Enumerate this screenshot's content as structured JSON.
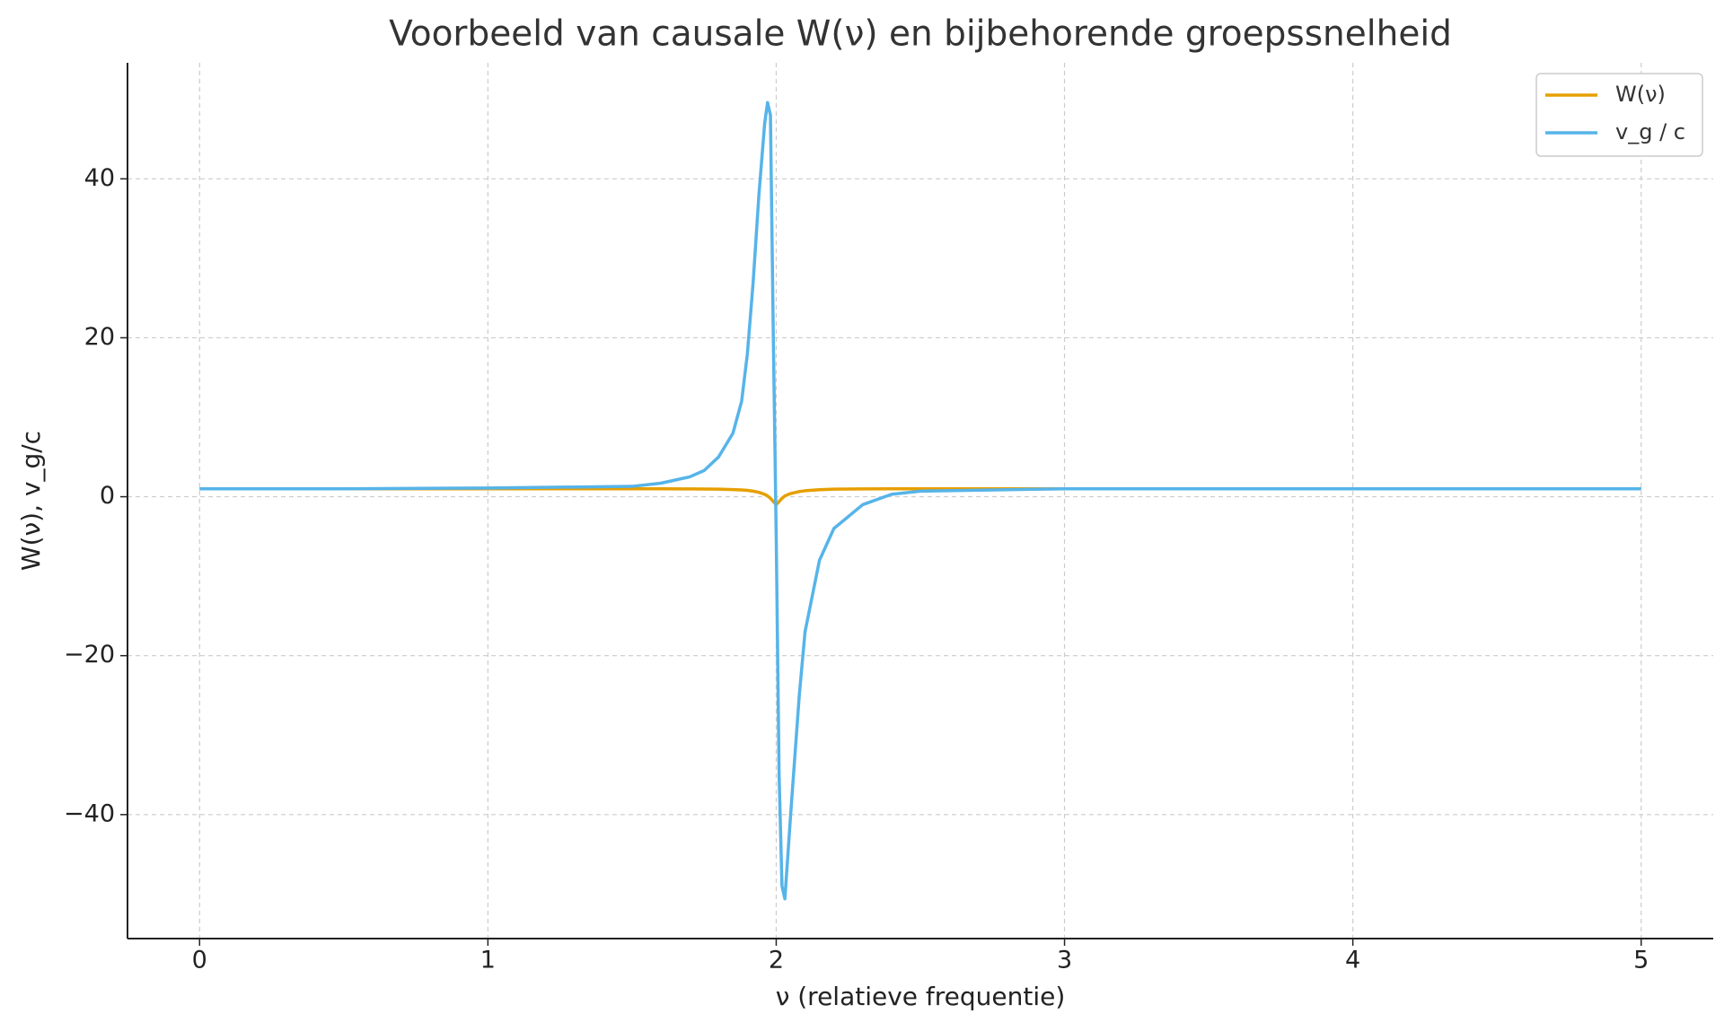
{
  "chart_data": {
    "type": "line",
    "title": "Voorbeeld van causale W(ν) en bijbehorende groepssnelheid",
    "x_label": "ν (relatieve frequentie)",
    "y_label": "W(ν), v_g/c",
    "x": [
      0,
      0.5,
      1,
      1.5,
      1.6,
      1.7,
      1.75,
      1.8,
      1.85,
      1.88,
      1.9,
      1.92,
      1.94,
      1.96,
      1.97,
      1.98,
      1.99,
      2.0,
      2.01,
      2.02,
      2.03,
      2.05,
      2.08,
      2.1,
      2.15,
      2.2,
      2.3,
      2.4,
      2.5,
      3,
      4,
      5
    ],
    "series": [
      {
        "name": "W(ν)",
        "color": "#E69F00",
        "values": [
          1,
          1,
          1,
          1,
          1,
          0.98,
          0.97,
          0.95,
          0.9,
          0.85,
          0.8,
          0.7,
          0.55,
          0.3,
          0.1,
          -0.2,
          -0.6,
          -1,
          -0.6,
          -0.2,
          0.1,
          0.4,
          0.65,
          0.75,
          0.88,
          0.95,
          0.98,
          1,
          1,
          1,
          1,
          1
        ]
      },
      {
        "name": "v_g / c",
        "color": "#56B4E9",
        "values": [
          1,
          1,
          1.1,
          1.3,
          1.7,
          2.5,
          3.3,
          5,
          8,
          12,
          18,
          27,
          38,
          47,
          49.6,
          48,
          20,
          -5,
          -35,
          -49,
          -50.6,
          -40,
          -25,
          -17,
          -8,
          -4,
          -1,
          0.3,
          0.7,
          1,
          1,
          1
        ]
      }
    ],
    "xlim": [
      -0.25,
      5.25
    ],
    "ylim": [
      -55.6,
      54.6
    ],
    "xticks": [
      0,
      1,
      2,
      3,
      4,
      5
    ],
    "yticks": [
      {
        "value": -40,
        "label": "−40"
      },
      {
        "value": -20,
        "label": "−20"
      },
      0,
      20,
      40
    ],
    "grid": true,
    "legend": "upper right"
  }
}
